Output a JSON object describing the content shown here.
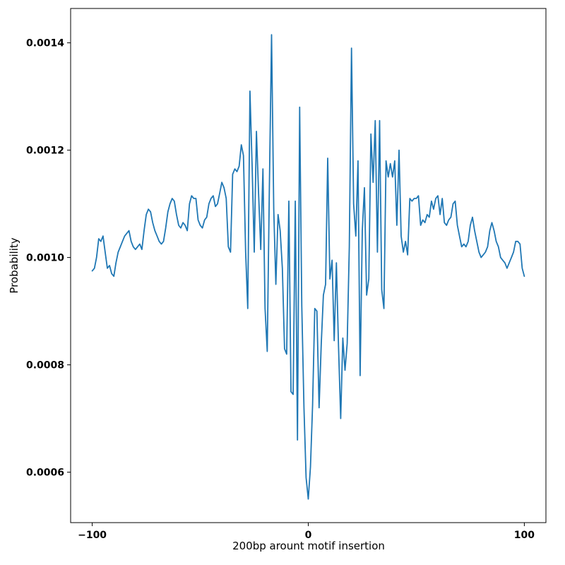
{
  "chart_data": {
    "type": "line",
    "title": "",
    "xlabel": "200bp arount motif insertion",
    "ylabel": "Probability",
    "xlim": [
      -110,
      110
    ],
    "ylim": [
      0.000506,
      0.001464
    ],
    "grid": false,
    "legend": "none",
    "line_color": "#1f77b4",
    "xtick_values": [
      -100,
      0,
      100
    ],
    "xtick_labels": [
      "−100",
      "0",
      "100"
    ],
    "ytick_values": [
      0.0006,
      0.0008,
      0.001,
      0.0012,
      0.0014
    ],
    "ytick_labels": [
      "0.0006",
      "0.0008",
      "0.0010",
      "0.0012",
      "0.0014"
    ],
    "x_start": -100,
    "x_step": 1,
    "y": [
      0.000975,
      0.00098,
      0.001,
      0.001035,
      0.00103,
      0.00104,
      0.00101,
      0.00098,
      0.000985,
      0.00097,
      0.000965,
      0.00099,
      0.00101,
      0.00102,
      0.00103,
      0.00104,
      0.001045,
      0.00105,
      0.00103,
      0.00102,
      0.001015,
      0.00102,
      0.001025,
      0.001015,
      0.00105,
      0.00108,
      0.00109,
      0.001085,
      0.001065,
      0.00105,
      0.00104,
      0.00103,
      0.001025,
      0.00103,
      0.001055,
      0.001085,
      0.0011,
      0.00111,
      0.001105,
      0.00108,
      0.00106,
      0.001055,
      0.001065,
      0.00106,
      0.00105,
      0.0011,
      0.001115,
      0.00111,
      0.00111,
      0.00107,
      0.00106,
      0.001055,
      0.00107,
      0.001075,
      0.0011,
      0.00111,
      0.001115,
      0.001095,
      0.0011,
      0.00112,
      0.00114,
      0.00113,
      0.00111,
      0.00102,
      0.00101,
      0.001155,
      0.001165,
      0.00116,
      0.00117,
      0.00121,
      0.00119,
      0.00101,
      0.000905,
      0.00131,
      0.00117,
      0.00101,
      0.001235,
      0.00112,
      0.001015,
      0.001165,
      0.000905,
      0.000825,
      0.00113,
      0.001415,
      0.00109,
      0.00095,
      0.00108,
      0.00105,
      0.00098,
      0.00083,
      0.00082,
      0.001105,
      0.00075,
      0.000745,
      0.001105,
      0.00066,
      0.00128,
      0.00091,
      0.00072,
      0.00059,
      0.00055,
      0.00061,
      0.000725,
      0.000905,
      0.0009,
      0.00072,
      0.00084,
      0.00093,
      0.00095,
      0.001185,
      0.00096,
      0.000995,
      0.000845,
      0.00099,
      0.000835,
      0.0007,
      0.00085,
      0.00079,
      0.00084,
      0.00102,
      0.00139,
      0.0011,
      0.00104,
      0.00118,
      0.00078,
      0.00105,
      0.00113,
      0.00093,
      0.00096,
      0.00123,
      0.00114,
      0.001255,
      0.00101,
      0.001255,
      0.00094,
      0.000905,
      0.00118,
      0.00115,
      0.001175,
      0.00115,
      0.00118,
      0.00106,
      0.0012,
      0.00104,
      0.00101,
      0.00103,
      0.001005,
      0.00111,
      0.001105,
      0.00111,
      0.00111,
      0.001115,
      0.00106,
      0.00107,
      0.001065,
      0.00108,
      0.001075,
      0.001105,
      0.00109,
      0.00111,
      0.001115,
      0.00108,
      0.00111,
      0.001065,
      0.00106,
      0.00107,
      0.001075,
      0.0011,
      0.001105,
      0.00106,
      0.00104,
      0.00102,
      0.001025,
      0.00102,
      0.00103,
      0.00106,
      0.001075,
      0.00105,
      0.00103,
      0.00101,
      0.001,
      0.001005,
      0.00101,
      0.00102,
      0.00105,
      0.001065,
      0.00105,
      0.00103,
      0.00102,
      0.001,
      0.000995,
      0.00099,
      0.00098,
      0.00099,
      0.001,
      0.00101,
      0.00103,
      0.00103,
      0.001025,
      0.00098,
      0.000965
    ]
  }
}
